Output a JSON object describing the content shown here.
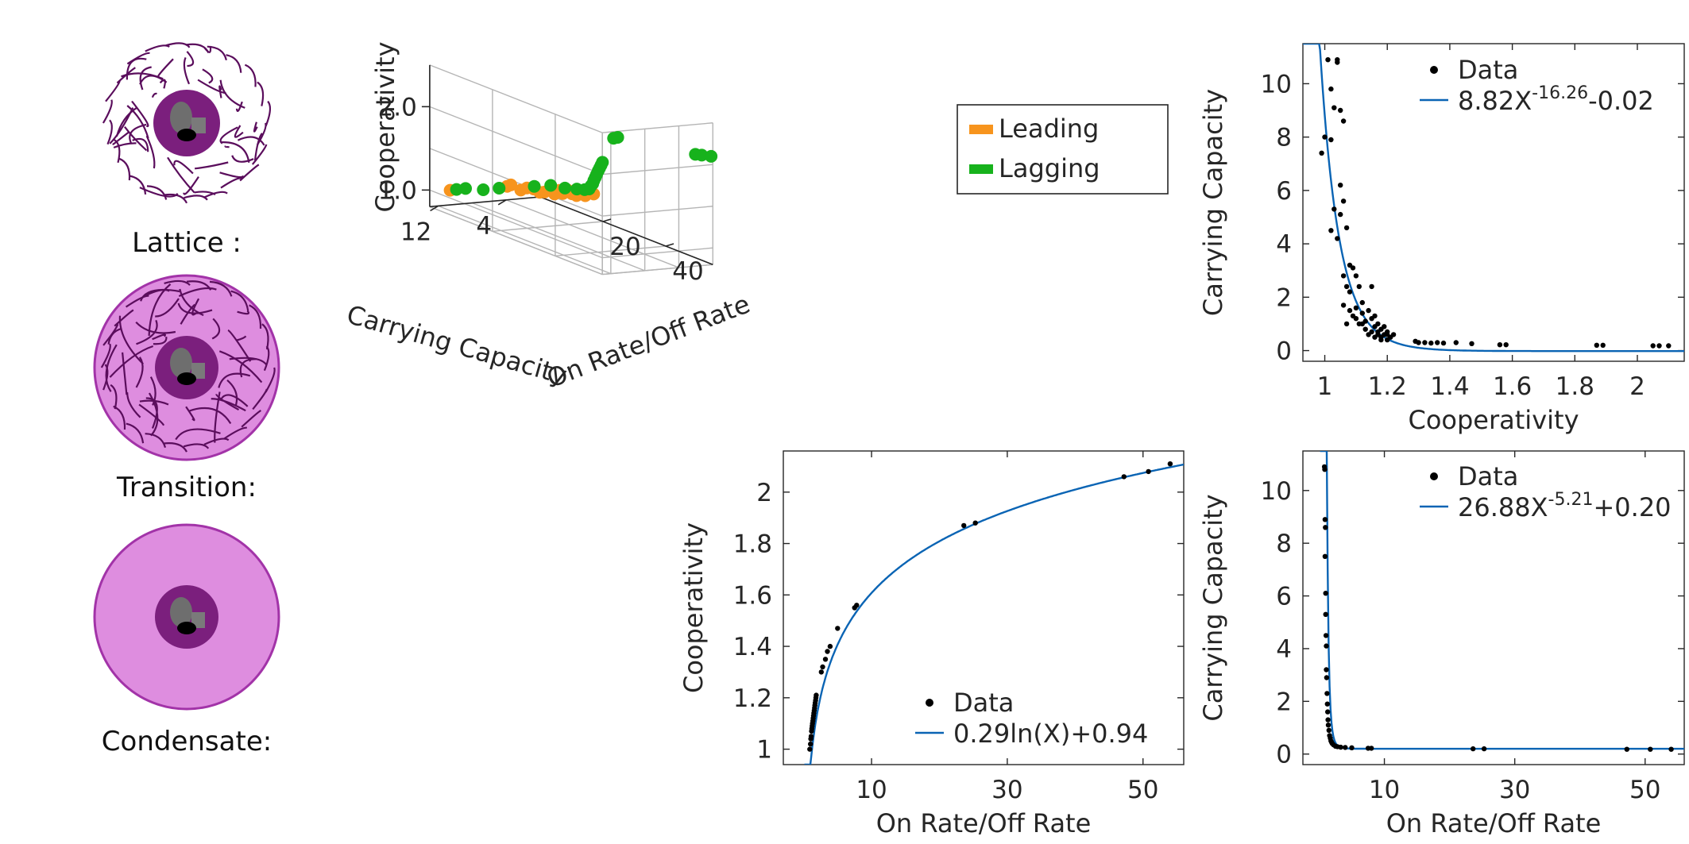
{
  "states": [
    {
      "key": "lattice",
      "label": "Lattice :",
      "halo": false
    },
    {
      "key": "transition",
      "label": "Transition:",
      "halo": true
    },
    {
      "key": "condensate",
      "label": "Condensate:",
      "halo": true
    }
  ],
  "colors": {
    "leading": "#f7941d",
    "lagging": "#17b21c",
    "fit": "#0a64b4",
    "data": "#000000",
    "halo_fill": "#de8ddf",
    "halo_edge": "#a233a8",
    "core": "#7b1f7d",
    "strand": "#5a0d5c",
    "protein": "#6e6e6e"
  },
  "chart_data": [
    {
      "id": "scatter3d",
      "type": "scatter",
      "projection": "3d",
      "xlabel": "Carrying Capacity",
      "ylabel": "On Rate/Off Rate",
      "zlabel": "Cooperativity",
      "xticks": [
        "12",
        "4"
      ],
      "yticks": [
        "20",
        "40"
      ],
      "zticks": [
        "1.0",
        "2.0"
      ],
      "grid": true,
      "legend_position": "right",
      "series": [
        {
          "name": "Leading",
          "points": [
            [
              11.3,
              1.9,
              1.01
            ],
            [
              6.3,
              6.5,
              1.08
            ],
            [
              6.0,
              6.9,
              1.1
            ],
            [
              5.1,
              7.6,
              1.04
            ],
            [
              4.6,
              8.2,
              1.07
            ],
            [
              4.0,
              8.8,
              1.06
            ],
            [
              3.6,
              9.6,
              1.03
            ],
            [
              3.3,
              10.3,
              1.04
            ],
            [
              2.9,
              10.9,
              1.07
            ],
            [
              2.6,
              11.6,
              1.03
            ],
            [
              2.3,
              12.3,
              1.08
            ],
            [
              2.1,
              12.9,
              1.05
            ],
            [
              1.8,
              13.5,
              1.1
            ],
            [
              1.5,
              14.2,
              1.06
            ],
            [
              1.3,
              15.1,
              1.05
            ],
            [
              1.1,
              15.9,
              1.1
            ],
            [
              0.9,
              16.8,
              1.07
            ],
            [
              0.7,
              17.7,
              1.12
            ],
            [
              0.5,
              18.4,
              1.11
            ]
          ]
        },
        {
          "name": "Lagging",
          "points": [
            [
              10.7,
              2.3,
              1.02
            ],
            [
              10.0,
              3.3,
              1.04
            ],
            [
              8.4,
              4.6,
              1.03
            ],
            [
              6.9,
              5.6,
              1.05
            ],
            [
              4.1,
              9.2,
              1.1
            ],
            [
              2.9,
              11.2,
              1.13
            ],
            [
              2.0,
              13.3,
              1.12
            ],
            [
              1.3,
              15.2,
              1.13
            ],
            [
              0.9,
              16.6,
              1.14
            ],
            [
              0.7,
              17.5,
              1.16
            ],
            [
              0.6,
              17.8,
              1.2
            ],
            [
              0.5,
              18.1,
              1.23
            ],
            [
              0.45,
              18.3,
              1.27
            ],
            [
              0.4,
              18.6,
              1.31
            ],
            [
              0.35,
              18.9,
              1.35
            ],
            [
              0.3,
              19.3,
              1.4
            ],
            [
              0.28,
              19.7,
              1.44
            ],
            [
              0.26,
              20.1,
              1.48
            ],
            [
              0.25,
              20.5,
              1.52
            ],
            [
              0.23,
              24.0,
              1.86
            ],
            [
              0.22,
              25.3,
              1.89
            ],
            [
              0.21,
              50.0,
              2.05
            ],
            [
              0.2,
              52.0,
              2.07
            ],
            [
              0.2,
              55.0,
              2.1
            ]
          ]
        }
      ]
    },
    {
      "id": "cap_vs_coop",
      "type": "scatter",
      "xlabel": "Cooperativity",
      "ylabel": "Carrying Capacity",
      "xlim": [
        0.93,
        2.15
      ],
      "ylim": [
        -0.4,
        11.5
      ],
      "xticks": [
        1,
        1.2,
        1.4,
        1.6,
        1.8,
        2
      ],
      "xtick_labels": [
        "1",
        "1.2",
        "1.4",
        "1.6",
        "1.8",
        "2"
      ],
      "yticks": [
        0,
        2,
        4,
        6,
        8,
        10
      ],
      "ytick_labels": [
        "0",
        "2",
        "4",
        "6",
        "8",
        "10"
      ],
      "legend_position": "top-right",
      "legend": {
        "data": "Data",
        "fit_main": "8.82X",
        "fit_exp": "-16.26",
        "fit_tail": "-0.02"
      },
      "fit": {
        "model": "power",
        "a": 8.82,
        "b": -16.26,
        "c": -0.02
      },
      "points": [
        [
          0.99,
          7.4
        ],
        [
          1.0,
          8.0
        ],
        [
          1.01,
          10.9
        ],
        [
          1.02,
          7.9
        ],
        [
          1.02,
          9.8
        ],
        [
          1.03,
          9.1
        ],
        [
          1.04,
          10.9
        ],
        [
          1.04,
          10.8
        ],
        [
          1.05,
          9.0
        ],
        [
          1.06,
          8.6
        ],
        [
          1.02,
          4.5
        ],
        [
          1.03,
          5.3
        ],
        [
          1.04,
          4.2
        ],
        [
          1.05,
          5.1
        ],
        [
          1.05,
          6.2
        ],
        [
          1.06,
          5.6
        ],
        [
          1.07,
          4.6
        ],
        [
          1.06,
          2.8
        ],
        [
          1.07,
          2.4
        ],
        [
          1.08,
          3.2
        ],
        [
          1.08,
          2.2
        ],
        [
          1.09,
          3.1
        ],
        [
          1.1,
          2.8
        ],
        [
          1.1,
          1.6
        ],
        [
          1.11,
          2.4
        ],
        [
          1.12,
          1.4
        ],
        [
          1.12,
          1.8
        ],
        [
          1.13,
          1.1
        ],
        [
          1.14,
          1.5
        ],
        [
          1.15,
          2.4
        ],
        [
          1.15,
          1.2
        ],
        [
          1.16,
          0.9
        ],
        [
          1.16,
          1.3
        ],
        [
          1.17,
          0.7
        ],
        [
          1.17,
          1.0
        ],
        [
          1.18,
          0.5
        ],
        [
          1.18,
          0.8
        ],
        [
          1.19,
          0.6
        ],
        [
          1.19,
          0.9
        ],
        [
          1.2,
          0.4
        ],
        [
          1.2,
          0.7
        ],
        [
          1.07,
          1.0
        ],
        [
          1.09,
          1.3
        ],
        [
          1.11,
          1.0
        ],
        [
          1.13,
          0.8
        ],
        [
          1.14,
          0.6
        ],
        [
          1.15,
          0.7
        ],
        [
          1.16,
          0.5
        ],
        [
          1.17,
          0.6
        ],
        [
          1.18,
          0.4
        ],
        [
          1.2,
          0.6
        ],
        [
          1.21,
          0.5
        ],
        [
          1.06,
          1.7
        ],
        [
          1.08,
          1.5
        ],
        [
          1.1,
          1.2
        ],
        [
          1.12,
          1.0
        ],
        [
          1.22,
          0.6
        ],
        [
          1.29,
          0.35
        ],
        [
          1.3,
          0.3
        ],
        [
          1.32,
          0.3
        ],
        [
          1.34,
          0.28
        ],
        [
          1.36,
          0.3
        ],
        [
          1.38,
          0.28
        ],
        [
          1.42,
          0.3
        ],
        [
          1.47,
          0.26
        ],
        [
          1.56,
          0.22
        ],
        [
          1.58,
          0.22
        ],
        [
          1.87,
          0.2
        ],
        [
          1.89,
          0.2
        ],
        [
          2.05,
          0.18
        ],
        [
          2.07,
          0.18
        ],
        [
          2.1,
          0.18
        ]
      ]
    },
    {
      "id": "coop_vs_rate",
      "type": "scatter",
      "xlabel": "On Rate/Off Rate",
      "ylabel": "Cooperativity",
      "xlim": [
        -3,
        56
      ],
      "ylim": [
        0.94,
        2.16
      ],
      "xticks": [
        10,
        30,
        50
      ],
      "xtick_labels": [
        "10",
        "30",
        "50"
      ],
      "yticks": [
        1,
        1.2,
        1.4,
        1.6,
        1.8,
        2
      ],
      "ytick_labels": [
        "1",
        "1.2",
        "1.4",
        "1.6",
        "1.8",
        "2"
      ],
      "legend_position": "bottom-right",
      "legend": {
        "data": "Data",
        "fit_main": "0.29ln(X)+0.94"
      },
      "fit": {
        "model": "log",
        "a": 0.29,
        "b": 0.94
      },
      "points": [
        [
          0.9,
          1.0
        ],
        [
          1.0,
          1.02
        ],
        [
          1.05,
          1.04
        ],
        [
          1.1,
          1.05
        ],
        [
          1.15,
          1.07
        ],
        [
          1.2,
          1.08
        ],
        [
          1.25,
          1.09
        ],
        [
          1.3,
          1.1
        ],
        [
          1.35,
          1.11
        ],
        [
          1.4,
          1.12
        ],
        [
          1.45,
          1.13
        ],
        [
          1.5,
          1.14
        ],
        [
          1.55,
          1.15
        ],
        [
          1.6,
          1.16
        ],
        [
          1.65,
          1.17
        ],
        [
          1.7,
          1.18
        ],
        [
          1.75,
          1.19
        ],
        [
          1.8,
          1.2
        ],
        [
          1.85,
          1.21
        ],
        [
          2.6,
          1.3
        ],
        [
          2.8,
          1.32
        ],
        [
          3.2,
          1.35
        ],
        [
          3.5,
          1.38
        ],
        [
          3.9,
          1.4
        ],
        [
          5.0,
          1.47
        ],
        [
          7.5,
          1.55
        ],
        [
          7.8,
          1.56
        ],
        [
          23.6,
          1.87
        ],
        [
          25.3,
          1.88
        ],
        [
          47.2,
          2.06
        ],
        [
          50.8,
          2.08
        ],
        [
          54.0,
          2.11
        ]
      ]
    },
    {
      "id": "cap_vs_rate",
      "type": "scatter",
      "xlabel": "On Rate/Off Rate",
      "ylabel": "Carrying Capacity",
      "xlim": [
        -2.5,
        56
      ],
      "ylim": [
        -0.4,
        11.5
      ],
      "xticks": [
        10,
        30,
        50
      ],
      "xtick_labels": [
        "10",
        "30",
        "50"
      ],
      "yticks": [
        0,
        2,
        4,
        6,
        8,
        10
      ],
      "ytick_labels": [
        "0",
        "2",
        "4",
        "6",
        "8",
        "10"
      ],
      "legend_position": "top-right",
      "legend": {
        "data": "Data",
        "fit_main": "26.88X",
        "fit_exp": "-5.21",
        "fit_tail": "+0.20"
      },
      "fit": {
        "model": "power",
        "a": 26.88,
        "b": -5.21,
        "c": 0.2
      },
      "points": [
        [
          0.8,
          10.9
        ],
        [
          0.85,
          10.8
        ],
        [
          0.9,
          8.9
        ],
        [
          0.95,
          8.6
        ],
        [
          0.9,
          7.5
        ],
        [
          1.0,
          6.1
        ],
        [
          1.0,
          5.3
        ],
        [
          1.05,
          4.5
        ],
        [
          1.1,
          4.1
        ],
        [
          1.1,
          3.2
        ],
        [
          1.15,
          2.9
        ],
        [
          1.2,
          2.3
        ],
        [
          1.25,
          1.9
        ],
        [
          1.3,
          1.6
        ],
        [
          1.35,
          1.3
        ],
        [
          1.4,
          1.1
        ],
        [
          1.5,
          0.9
        ],
        [
          1.6,
          0.7
        ],
        [
          1.7,
          0.6
        ],
        [
          1.8,
          0.5
        ],
        [
          1.9,
          0.45
        ],
        [
          2.0,
          0.4
        ],
        [
          2.2,
          0.35
        ],
        [
          2.5,
          0.3
        ],
        [
          2.8,
          0.28
        ],
        [
          3.3,
          0.26
        ],
        [
          4.0,
          0.25
        ],
        [
          5.0,
          0.24
        ],
        [
          7.5,
          0.22
        ],
        [
          8.0,
          0.22
        ],
        [
          23.6,
          0.2
        ],
        [
          25.3,
          0.2
        ],
        [
          47.2,
          0.18
        ],
        [
          50.8,
          0.18
        ],
        [
          54.0,
          0.18
        ]
      ]
    }
  ]
}
